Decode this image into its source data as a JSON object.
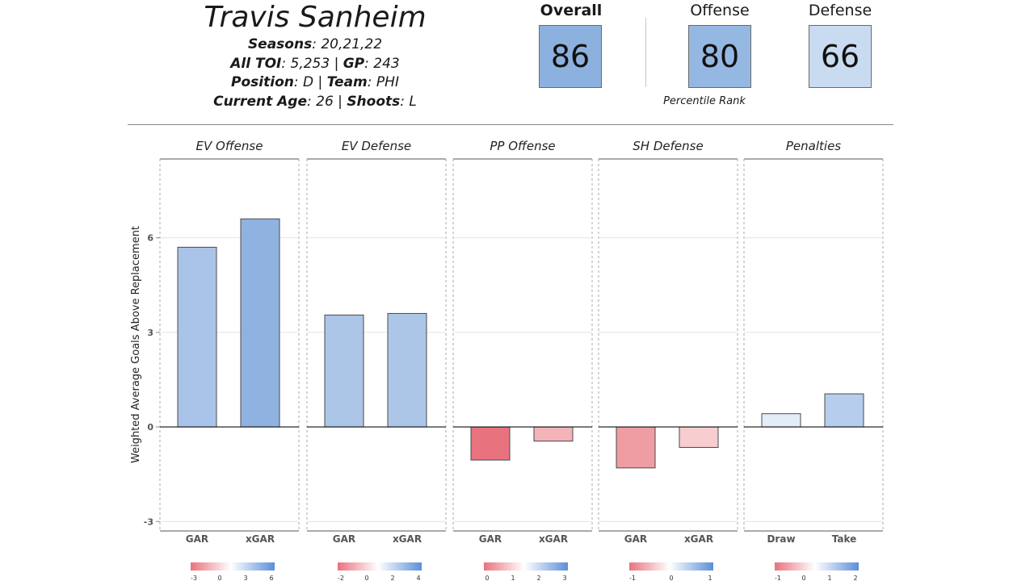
{
  "player": {
    "name": "Travis Sanheim",
    "seasons_label": "Seasons",
    "seasons": "20,21,22",
    "toi_label": "All TOI",
    "toi": "5,253",
    "gp_label": "GP",
    "gp": "243",
    "position_label": "Position",
    "position": "D",
    "team_label": "Team",
    "team": "PHI",
    "age_label": "Current Age",
    "age": "26",
    "shoots_label": "Shoots",
    "shoots": "L"
  },
  "ratings": {
    "overall": {
      "label": "Overall",
      "value": "86",
      "color": "#8db1de"
    },
    "offense": {
      "label": "Offense",
      "value": "80",
      "color": "#95b8e2"
    },
    "defense": {
      "label": "Defense",
      "value": "66",
      "color": "#c9dbf1"
    },
    "percentile_label": "Percentile Rank"
  },
  "chart_data": {
    "type": "bar",
    "ylabel": "Weighted Average Goals Above Replacement",
    "ylim": [
      -3.3,
      8.5
    ],
    "yticks": [
      -3,
      0,
      3,
      6
    ],
    "ytick_labels": [
      "-3",
      "0",
      "3",
      "6"
    ],
    "panels": [
      {
        "title": "EV Offense",
        "categories": [
          "GAR",
          "xGAR"
        ],
        "values": [
          5.7,
          6.6
        ],
        "colors": [
          "#a9c4e8",
          "#8fb2e0"
        ],
        "legend_ticks": [
          "-3",
          "0",
          "3",
          "6"
        ]
      },
      {
        "title": "EV Defense",
        "categories": [
          "GAR",
          "xGAR"
        ],
        "values": [
          3.55,
          3.6
        ],
        "colors": [
          "#acc6e8",
          "#acc6e8"
        ],
        "legend_ticks": [
          "-2",
          "0",
          "2",
          "4"
        ]
      },
      {
        "title": "PP Offense",
        "categories": [
          "GAR",
          "xGAR"
        ],
        "values": [
          -1.05,
          -0.45
        ],
        "colors": [
          "#e8737f",
          "#f2b3b9"
        ],
        "legend_ticks": [
          "0",
          "1",
          "2",
          "3"
        ]
      },
      {
        "title": "SH Defense",
        "categories": [
          "GAR",
          "xGAR"
        ],
        "values": [
          -1.3,
          -0.65
        ],
        "colors": [
          "#ef9ca3",
          "#f8cdd0"
        ],
        "legend_ticks": [
          "-1",
          "0",
          "1"
        ]
      },
      {
        "title": "Penalties",
        "categories": [
          "Draw",
          "Take"
        ],
        "values": [
          0.42,
          1.05
        ],
        "colors": [
          "#e4ecf8",
          "#b6cdee"
        ],
        "legend_ticks": [
          "-1",
          "0",
          "1",
          "2"
        ]
      }
    ]
  }
}
